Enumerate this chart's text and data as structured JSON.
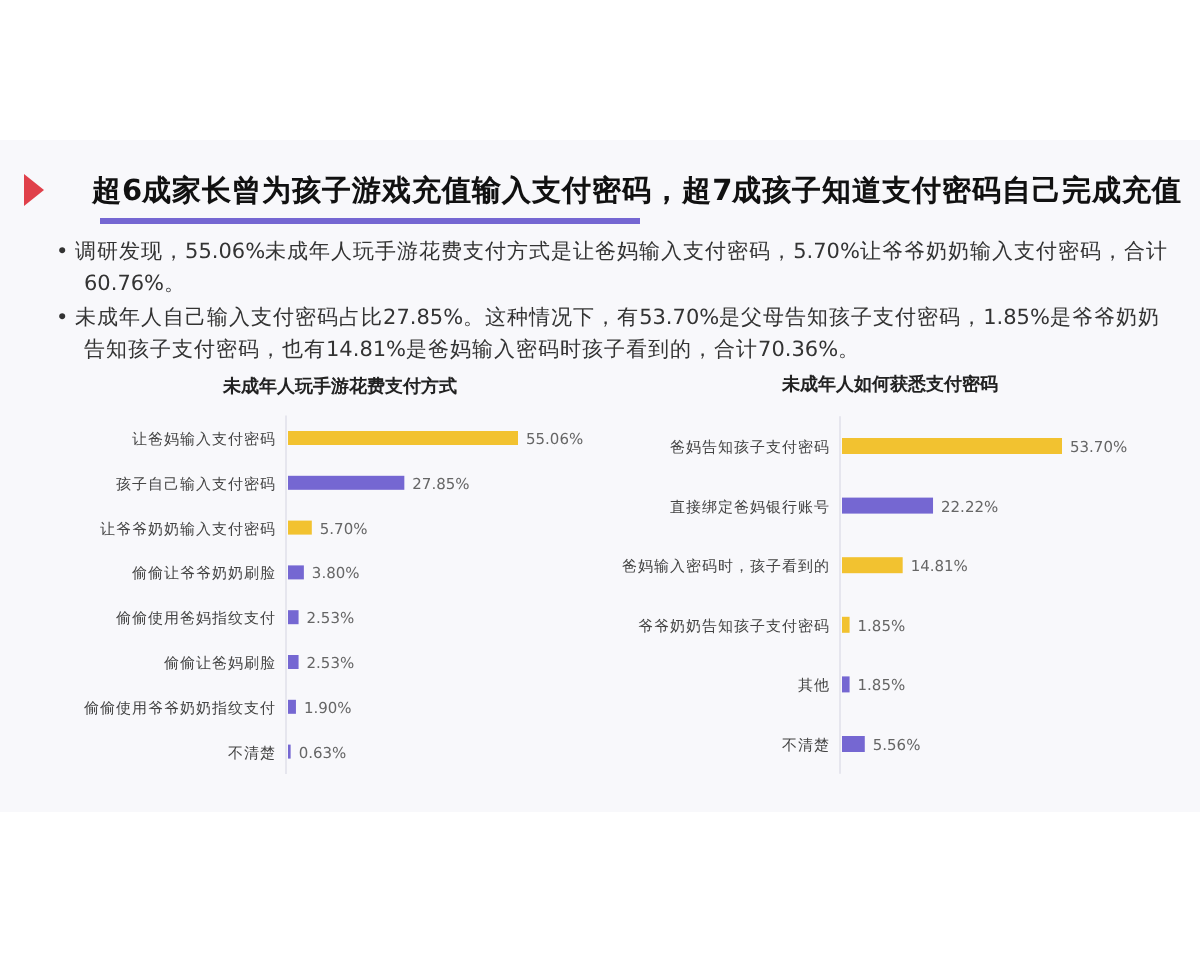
{
  "chart_data": [
    {
      "type": "other",
      "title": "超6成家长曾为孩子游戏充值输入支付密码，超7成孩子知道支付密码自己完成充值",
      "annotations": [
        "• 调研发现，55.06%未成年人玩手游花费支付方式是让爸妈输入支付密码，5.70%让爷爷奶奶输入支付密码，合计60.76%。",
        "• 未成年人自己输入支付密码占比27.85%。这种情况下，有53.70%是父母告知孩子支付密码，1.85%是爷爷奶奶告知孩子支付密码，也有14.81%是爸妈输入密码时孩子看到的，合计70.36%。"
      ]
    },
    {
      "type": "bar",
      "orientation": "horizontal",
      "title": "未成年人玩手游花费支付方式",
      "data_labels": true,
      "categories": [
        "让爸妈输入支付密码",
        "孩子自己输入支付密码",
        "让爷爷奶奶输入支付密码",
        "偷偷让爷爷奶奶刷脸",
        "偷偷使用爸妈指纹支付",
        "偷偷让爸妈刷脸",
        "偷偷使用爷爷奶奶指纹支付",
        "不清楚"
      ],
      "values": [
        55.06,
        27.85,
        5.7,
        3.8,
        2.53,
        2.53,
        1.9,
        0.63
      ],
      "value_labels": [
        "55.06%",
        "27.85%",
        "5.70%",
        "3.80%",
        "2.53%",
        "2.53%",
        "1.90%",
        "0.63%"
      ],
      "colors": [
        "#f2c230",
        "#7567d2",
        "#f2c230",
        "#7567d2",
        "#7567d2",
        "#7567d2",
        "#7567d2",
        "#7567d2"
      ]
    },
    {
      "type": "bar",
      "orientation": "horizontal",
      "title": "未成年人如何获悉支付密码",
      "data_labels": true,
      "categories": [
        "爸妈告知孩子支付密码",
        "直接绑定爸妈银行账号",
        "爸妈输入密码时，孩子看到的",
        "爷爷奶奶告知孩子支付密码",
        "其他",
        "不清楚"
      ],
      "values": [
        53.7,
        22.22,
        14.81,
        1.85,
        1.85,
        5.56
      ],
      "value_labels": [
        "53.70%",
        "22.22%",
        "14.81%",
        "1.85%",
        "1.85%",
        "5.56%"
      ],
      "colors": [
        "#f2c230",
        "#7567d2",
        "#f2c230",
        "#f2c230",
        "#7567d2",
        "#7567d2"
      ]
    }
  ]
}
